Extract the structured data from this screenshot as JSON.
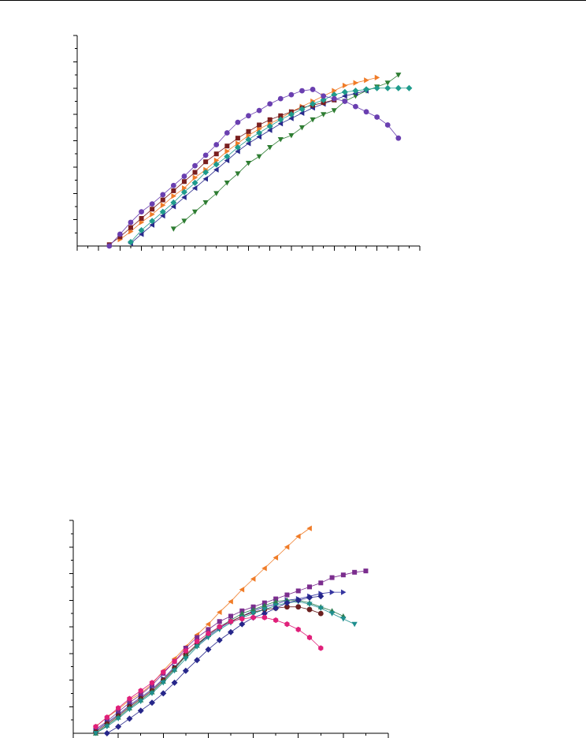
{
  "charts": [
    {
      "type": "line",
      "xlim": [
        0,
        32
      ],
      "ylim": [
        0,
        16
      ],
      "x_ticks": [
        0,
        1,
        2,
        3,
        4,
        5,
        6,
        7,
        8,
        9,
        10,
        11,
        12,
        13,
        14,
        15,
        16,
        17,
        18,
        19,
        20,
        21,
        22,
        23,
        24,
        25,
        26,
        27,
        28,
        29,
        30,
        31,
        32
      ],
      "y_ticks": [
        1,
        2,
        3,
        4,
        5,
        6,
        7,
        8,
        9,
        10,
        11,
        12,
        13,
        14,
        15,
        16
      ],
      "tick_labels_visible": false,
      "series": [
        {
          "marker": "downTriangle",
          "color": "#2e7d32",
          "x": [
            9,
            10,
            11,
            12,
            13,
            14,
            15,
            16,
            17,
            18,
            19,
            20,
            21,
            22,
            23,
            24,
            25,
            26,
            27,
            28,
            29,
            30
          ],
          "y": [
            1.3,
            1.9,
            2.6,
            3.3,
            4.0,
            4.8,
            5.5,
            6.3,
            6.8,
            7.5,
            8.1,
            8.4,
            9.0,
            9.6,
            10.0,
            10.3,
            11.0,
            11.4,
            11.8,
            12.1,
            12.4,
            13.0
          ]
        },
        {
          "marker": "rightTriangle",
          "color": "#f07c28",
          "x": [
            4,
            5,
            6,
            7,
            8,
            9,
            10,
            11,
            12,
            13,
            14,
            15,
            16,
            17,
            18,
            19,
            20,
            21,
            22,
            23,
            24,
            25,
            26,
            27,
            28
          ],
          "y": [
            0.5,
            1.1,
            1.8,
            2.4,
            3.1,
            3.8,
            4.4,
            5.2,
            5.8,
            6.5,
            7.2,
            7.8,
            8.4,
            8.9,
            9.3,
            9.7,
            10.2,
            10.6,
            11.0,
            11.4,
            11.8,
            12.2,
            12.4,
            12.6,
            12.8
          ]
        },
        {
          "marker": "leftTriangle",
          "color": "#2a2a8c",
          "x": [
            5,
            6,
            7,
            8,
            9,
            10,
            11,
            12,
            13,
            14,
            15,
            16,
            17,
            18,
            19,
            20,
            21,
            22,
            23,
            24,
            25,
            26,
            27
          ],
          "y": [
            0.2,
            0.9,
            1.6,
            2.3,
            3.0,
            3.7,
            4.4,
            5.1,
            5.8,
            6.5,
            7.2,
            7.8,
            8.3,
            8.8,
            9.3,
            9.7,
            10.1,
            10.5,
            10.8,
            11.1,
            11.4,
            11.6,
            11.8
          ]
        },
        {
          "marker": "square",
          "color": "#7a1f1f",
          "x": [
            3,
            4,
            5,
            6,
            7,
            8,
            9,
            10,
            11,
            12,
            13,
            14,
            15,
            16,
            17,
            18,
            19,
            20,
            21,
            22,
            23,
            24
          ],
          "y": [
            0.1,
            0.7,
            1.4,
            2.1,
            2.8,
            3.5,
            4.2,
            4.9,
            5.6,
            6.4,
            7.0,
            7.6,
            8.2,
            8.7,
            9.2,
            9.6,
            9.9,
            10.2,
            10.5,
            10.7,
            10.9,
            11.1
          ]
        },
        {
          "marker": "diamond",
          "color": "#1f9b8c",
          "x": [
            5,
            6,
            7,
            8,
            9,
            10,
            11,
            12,
            13,
            14,
            15,
            16,
            17,
            18,
            19,
            20,
            21,
            22,
            23,
            24,
            25,
            26,
            27,
            28,
            29,
            30,
            31
          ],
          "y": [
            0.3,
            1.2,
            1.9,
            2.6,
            3.3,
            4.1,
            4.8,
            5.6,
            6.2,
            6.8,
            7.5,
            8.1,
            8.6,
            9.1,
            9.6,
            10.0,
            10.4,
            10.8,
            11.1,
            11.5,
            11.7,
            11.8,
            11.9,
            12.0,
            12.0,
            12.0,
            12.0
          ]
        },
        {
          "marker": "circle",
          "color": "#6a3fb0",
          "x": [
            3,
            4,
            5,
            6,
            7,
            8,
            9,
            10,
            11,
            12,
            13,
            14,
            15,
            16,
            17,
            18,
            19,
            20,
            21,
            22,
            23,
            24,
            25,
            26,
            27,
            28,
            29,
            30
          ],
          "y": [
            0.0,
            0.9,
            1.8,
            2.6,
            3.2,
            3.9,
            4.6,
            5.3,
            6.1,
            6.9,
            7.7,
            8.6,
            9.4,
            9.9,
            10.3,
            10.8,
            11.2,
            11.5,
            11.8,
            11.9,
            11.4,
            11.2,
            11.0,
            10.6,
            10.2,
            9.8,
            9.2,
            8.2
          ]
        }
      ]
    },
    {
      "type": "line",
      "xlim": [
        0,
        14
      ],
      "ylim": [
        0,
        16
      ],
      "x_ticks": [
        0,
        1,
        2,
        3,
        4,
        5,
        6,
        7,
        8,
        9,
        10,
        11,
        12,
        13,
        14
      ],
      "y_ticks": [
        1,
        2,
        3,
        4,
        5,
        6,
        7,
        8,
        9,
        10,
        11,
        12,
        13,
        14,
        15,
        16
      ],
      "tick_labels_visible": false,
      "series": [
        {
          "marker": "leftTriangle",
          "color": "#f07c28",
          "x": [
            1,
            1.5,
            2,
            2.5,
            3,
            3.5,
            4,
            4.5,
            5,
            5.5,
            6,
            6.5,
            7,
            7.5,
            8,
            8.5,
            9,
            9.5,
            10,
            10.5
          ],
          "y": [
            0.5,
            1.2,
            1.8,
            2.5,
            3.0,
            3.7,
            4.7,
            5.6,
            6.5,
            7.4,
            8.2,
            9.1,
            9.9,
            10.8,
            11.6,
            12.4,
            13.2,
            14.0,
            14.8,
            15.4
          ]
        },
        {
          "marker": "square",
          "color": "#7b2d8e",
          "x": [
            1,
            1.5,
            2,
            2.5,
            3,
            3.5,
            4,
            4.5,
            5,
            5.5,
            6,
            6.5,
            7,
            7.5,
            8,
            8.5,
            9,
            9.5,
            10,
            10.5,
            11,
            11.5,
            12,
            12.5,
            13
          ],
          "y": [
            0.3,
            0.9,
            1.6,
            2.3,
            2.9,
            3.6,
            4.5,
            5.4,
            6.4,
            7.2,
            7.8,
            8.4,
            8.8,
            9.2,
            9.5,
            9.8,
            10.1,
            10.4,
            10.7,
            11.0,
            11.3,
            11.7,
            11.9,
            12.1,
            12.2
          ]
        },
        {
          "marker": "rightTriangle",
          "color": "#3535a0",
          "x": [
            1,
            1.5,
            2,
            2.5,
            3,
            3.5,
            4,
            4.5,
            5,
            5.5,
            6,
            6.5,
            7,
            7.5,
            8,
            8.5,
            9,
            9.5,
            10,
            10.5,
            11,
            11.5,
            12
          ],
          "y": [
            0.2,
            0.8,
            1.4,
            2.1,
            2.7,
            3.3,
            4.1,
            5.0,
            5.8,
            6.6,
            7.3,
            7.9,
            8.4,
            8.8,
            9.2,
            9.5,
            9.7,
            10.0,
            10.1,
            10.3,
            10.5,
            10.6,
            10.6
          ]
        },
        {
          "marker": "circle",
          "color": "#6b2020",
          "x": [
            1,
            1.5,
            2,
            2.5,
            3,
            3.5,
            4,
            4.5,
            5,
            5.5,
            6,
            6.5,
            7,
            7.5,
            8,
            8.5,
            9,
            9.5,
            10,
            10.5,
            11
          ],
          "y": [
            0.1,
            0.7,
            1.3,
            2.0,
            2.6,
            3.2,
            4.0,
            4.9,
            5.9,
            6.7,
            7.4,
            8.0,
            8.4,
            8.8,
            9.1,
            9.3,
            9.4,
            9.5,
            9.5,
            9.3,
            9.0
          ]
        },
        {
          "marker": "upTriangle",
          "color": "#2e7d52",
          "x": [
            1,
            1.5,
            2,
            2.5,
            3,
            3.5,
            4,
            4.5,
            5,
            5.5,
            6,
            6.5,
            7,
            7.5,
            8,
            8.5,
            9,
            9.5,
            10,
            10.5,
            11,
            11.5,
            12
          ],
          "y": [
            0.0,
            0.6,
            1.2,
            1.9,
            2.5,
            3.1,
            3.9,
            4.8,
            5.8,
            6.6,
            7.4,
            8.0,
            8.5,
            9.0,
            9.3,
            9.6,
            9.9,
            10.0,
            10.0,
            9.8,
            9.5,
            9.2,
            8.8
          ]
        },
        {
          "marker": "downTriangle",
          "color": "#1f8f8f",
          "x": [
            1,
            1.5,
            2,
            2.5,
            3,
            3.5,
            4,
            4.5,
            5,
            5.5,
            6,
            6.5,
            7,
            7.5,
            8,
            8.5,
            9,
            9.5,
            10,
            10.5,
            11,
            11.5,
            12,
            12.5
          ],
          "y": [
            0.0,
            0.5,
            1.1,
            1.8,
            2.4,
            3.0,
            3.8,
            4.7,
            5.6,
            6.5,
            7.2,
            7.8,
            8.3,
            8.7,
            9.0,
            9.3,
            9.6,
            9.8,
            9.9,
            9.7,
            9.4,
            9.0,
            8.6,
            8.2
          ]
        },
        {
          "marker": "diamond",
          "color": "#26268a",
          "x": [
            1.5,
            2,
            2.5,
            3,
            3.5,
            4,
            4.5,
            5,
            5.5,
            6,
            6.5,
            7,
            7.5,
            8,
            8.5,
            9,
            9.5,
            10,
            10.5,
            11
          ],
          "y": [
            0.0,
            0.5,
            1.1,
            1.7,
            2.3,
            3.0,
            3.8,
            4.7,
            5.5,
            6.3,
            7.0,
            7.6,
            8.2,
            8.7,
            9.0,
            9.4,
            9.8,
            10.0,
            10.2,
            10.3
          ]
        },
        {
          "marker": "hexagon",
          "color": "#e0207a",
          "x": [
            1,
            1.5,
            2,
            2.5,
            3,
            3.5,
            4,
            4.5,
            5,
            5.5,
            6,
            6.5,
            7,
            7.5,
            8,
            8.5,
            9,
            9.5,
            10,
            10.5,
            11
          ],
          "y": [
            0.5,
            1.2,
            1.9,
            2.6,
            3.2,
            3.8,
            4.6,
            5.4,
            6.2,
            6.9,
            7.5,
            8.0,
            8.4,
            8.6,
            8.7,
            8.7,
            8.5,
            8.2,
            7.8,
            7.2,
            6.4
          ]
        }
      ]
    }
  ]
}
